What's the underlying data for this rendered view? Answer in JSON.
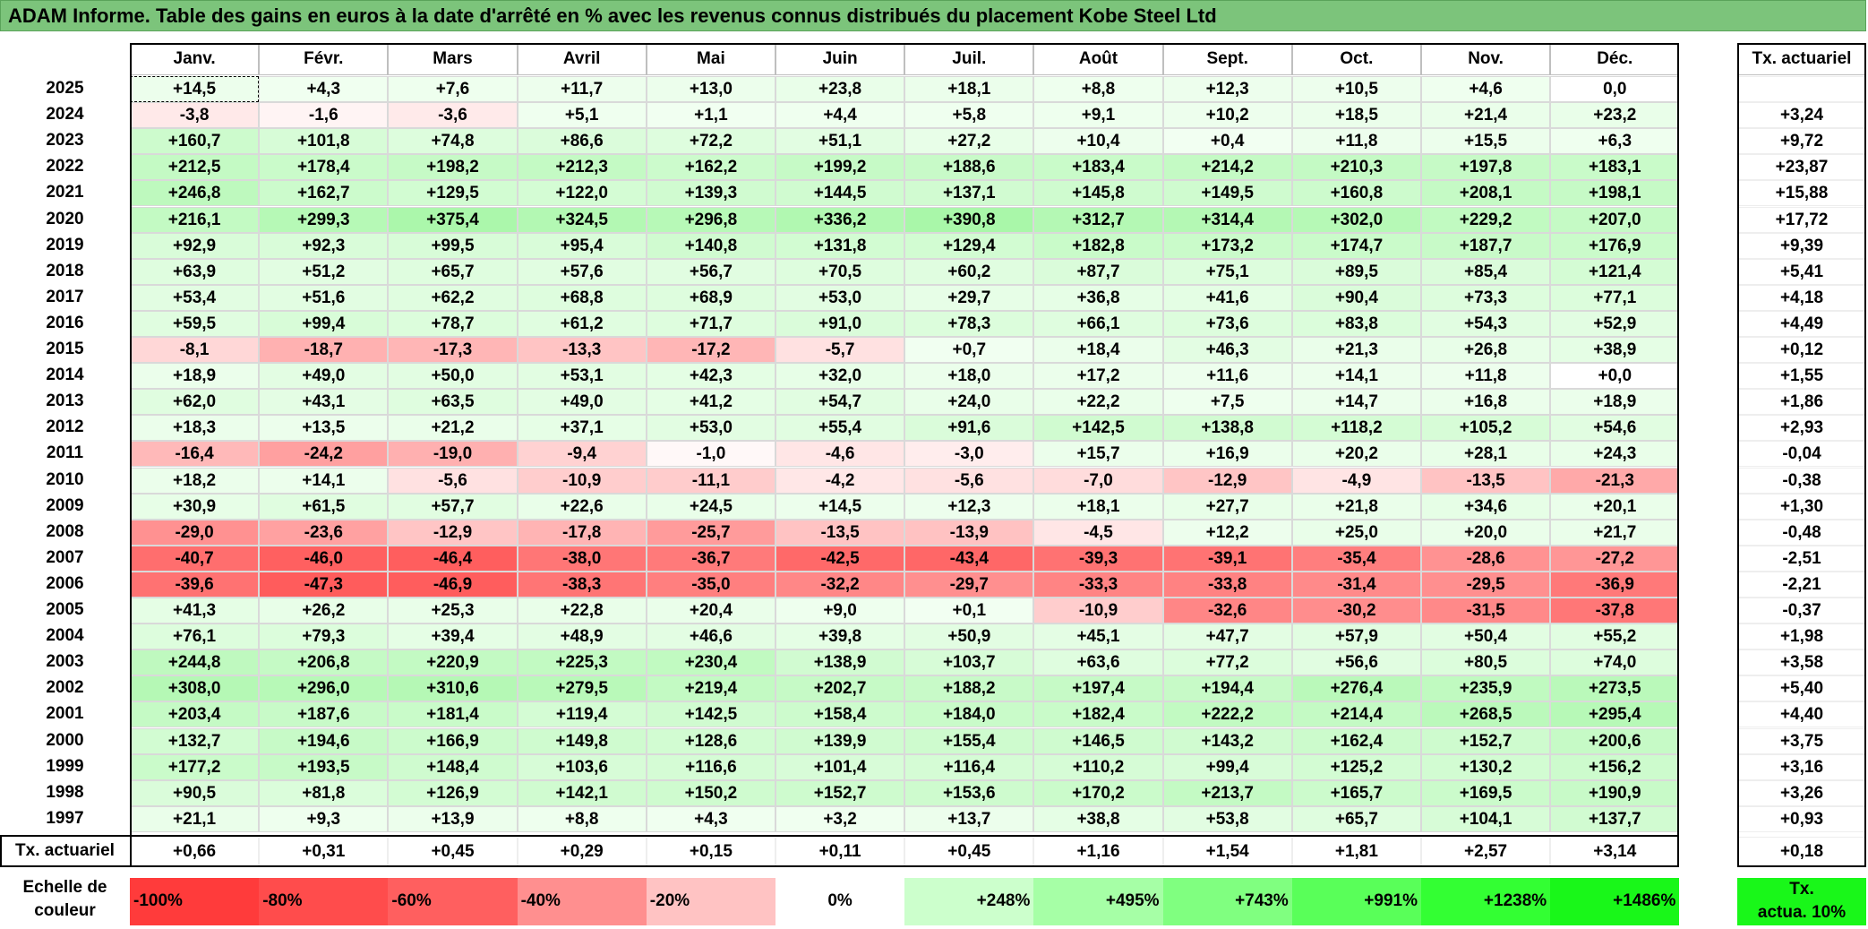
{
  "title": "ADAM Informe. Table des gains en euros à la date d'arrêté en % avec les revenus connus distribués du placement Kobe Steel Ltd",
  "chart_data": {
    "type": "heatmap",
    "title": "ADAM Informe. Table des gains en euros à la date d'arrêté en % avec les revenus connus distribués du placement Kobe Steel Ltd",
    "columns": [
      "Janv.",
      "Févr.",
      "Mars",
      "Avril",
      "Mai",
      "Juin",
      "Juil.",
      "Août",
      "Sept.",
      "Oct.",
      "Nov.",
      "Déc."
    ],
    "rate_header": "Tx. actuariel",
    "rows": [
      {
        "year": "2025",
        "values": [
          "+14,5",
          "+4,3",
          "+7,6",
          "+11,7",
          "+13,0",
          "+23,8",
          "+18,1",
          "+8,8",
          "+12,3",
          "+10,5",
          "+4,6",
          "0,0"
        ],
        "rate": ""
      },
      {
        "year": "2024",
        "values": [
          "-3,8",
          "-1,6",
          "-3,6",
          "+5,1",
          "+1,1",
          "+4,4",
          "+5,8",
          "+9,1",
          "+10,2",
          "+18,5",
          "+21,4",
          "+23,2"
        ],
        "rate": "+3,24"
      },
      {
        "year": "2023",
        "values": [
          "+160,7",
          "+101,8",
          "+74,8",
          "+86,6",
          "+72,2",
          "+51,1",
          "+27,2",
          "+10,4",
          "+0,4",
          "+11,8",
          "+15,5",
          "+6,3"
        ],
        "rate": "+9,72"
      },
      {
        "year": "2022",
        "values": [
          "+212,5",
          "+178,4",
          "+198,2",
          "+212,3",
          "+162,2",
          "+199,2",
          "+188,6",
          "+183,4",
          "+214,2",
          "+210,3",
          "+197,8",
          "+183,1"
        ],
        "rate": "+23,87"
      },
      {
        "year": "2021",
        "values": [
          "+246,8",
          "+162,7",
          "+129,5",
          "+122,0",
          "+139,3",
          "+144,5",
          "+137,1",
          "+145,8",
          "+149,5",
          "+160,8",
          "+208,1",
          "+198,1"
        ],
        "rate": "+15,88"
      },
      {
        "year": "2020",
        "values": [
          "+216,1",
          "+299,3",
          "+375,4",
          "+324,5",
          "+296,8",
          "+336,2",
          "+390,8",
          "+312,7",
          "+314,4",
          "+302,0",
          "+229,2",
          "+207,0"
        ],
        "rate": "+17,72"
      },
      {
        "year": "2019",
        "values": [
          "+92,9",
          "+92,3",
          "+99,5",
          "+95,4",
          "+140,8",
          "+131,8",
          "+129,4",
          "+182,8",
          "+173,2",
          "+174,7",
          "+187,7",
          "+176,9"
        ],
        "rate": "+9,39"
      },
      {
        "year": "2018",
        "values": [
          "+63,9",
          "+51,2",
          "+65,7",
          "+57,6",
          "+56,7",
          "+70,5",
          "+60,2",
          "+87,7",
          "+75,1",
          "+89,5",
          "+85,4",
          "+121,4"
        ],
        "rate": "+5,41"
      },
      {
        "year": "2017",
        "values": [
          "+53,4",
          "+51,6",
          "+62,2",
          "+68,8",
          "+68,9",
          "+53,0",
          "+29,7",
          "+36,8",
          "+41,6",
          "+90,4",
          "+73,3",
          "+77,1"
        ],
        "rate": "+4,18"
      },
      {
        "year": "2016",
        "values": [
          "+59,5",
          "+99,4",
          "+78,7",
          "+61,2",
          "+71,7",
          "+91,0",
          "+78,3",
          "+66,1",
          "+73,6",
          "+83,8",
          "+54,3",
          "+52,9"
        ],
        "rate": "+4,49"
      },
      {
        "year": "2015",
        "values": [
          "-8,1",
          "-18,7",
          "-17,3",
          "-13,3",
          "-17,2",
          "-5,7",
          "+0,7",
          "+18,4",
          "+46,3",
          "+21,3",
          "+26,8",
          "+38,9"
        ],
        "rate": "+0,12"
      },
      {
        "year": "2014",
        "values": [
          "+18,9",
          "+49,0",
          "+50,0",
          "+53,1",
          "+42,3",
          "+32,0",
          "+18,0",
          "+17,2",
          "+11,6",
          "+14,1",
          "+11,8",
          "+0,0"
        ],
        "rate": "+1,55"
      },
      {
        "year": "2013",
        "values": [
          "+62,0",
          "+43,1",
          "+63,5",
          "+49,0",
          "+41,2",
          "+54,7",
          "+24,0",
          "+22,2",
          "+7,5",
          "+14,7",
          "+16,8",
          "+18,9"
        ],
        "rate": "+1,86"
      },
      {
        "year": "2012",
        "values": [
          "+18,3",
          "+13,5",
          "+21,2",
          "+37,1",
          "+53,0",
          "+55,4",
          "+91,6",
          "+142,5",
          "+138,8",
          "+118,2",
          "+105,2",
          "+54,6"
        ],
        "rate": "+2,93"
      },
      {
        "year": "2011",
        "values": [
          "-16,4",
          "-24,2",
          "-19,0",
          "-9,4",
          "-1,0",
          "-4,6",
          "-3,0",
          "+15,7",
          "+16,9",
          "+20,2",
          "+28,1",
          "+24,3"
        ],
        "rate": "-0,04"
      },
      {
        "year": "2010",
        "values": [
          "+18,2",
          "+14,1",
          "-5,6",
          "-10,9",
          "-11,1",
          "-4,2",
          "-5,6",
          "-7,0",
          "-12,9",
          "-4,9",
          "-13,5",
          "-21,3"
        ],
        "rate": "-0,38"
      },
      {
        "year": "2009",
        "values": [
          "+30,9",
          "+61,5",
          "+57,7",
          "+22,6",
          "+24,5",
          "+14,5",
          "+12,3",
          "+18,1",
          "+27,7",
          "+21,8",
          "+34,6",
          "+20,1"
        ],
        "rate": "+1,30"
      },
      {
        "year": "2008",
        "values": [
          "-29,0",
          "-23,6",
          "-12,9",
          "-17,8",
          "-25,7",
          "-13,5",
          "-13,9",
          "-4,5",
          "+12,2",
          "+25,0",
          "+20,0",
          "+21,7"
        ],
        "rate": "-0,48"
      },
      {
        "year": "2007",
        "values": [
          "-40,7",
          "-46,0",
          "-46,4",
          "-38,0",
          "-36,7",
          "-42,5",
          "-43,4",
          "-39,3",
          "-39,1",
          "-35,4",
          "-28,6",
          "-27,2"
        ],
        "rate": "-2,51"
      },
      {
        "year": "2006",
        "values": [
          "-39,6",
          "-47,3",
          "-46,9",
          "-38,3",
          "-35,0",
          "-32,2",
          "-29,7",
          "-33,3",
          "-33,8",
          "-31,4",
          "-29,5",
          "-36,9"
        ],
        "rate": "-2,21"
      },
      {
        "year": "2005",
        "values": [
          "+41,3",
          "+26,2",
          "+25,3",
          "+22,8",
          "+20,4",
          "+9,0",
          "+0,1",
          "-10,9",
          "-32,6",
          "-30,2",
          "-31,5",
          "-37,8"
        ],
        "rate": "-0,37"
      },
      {
        "year": "2004",
        "values": [
          "+76,1",
          "+79,3",
          "+39,4",
          "+48,9",
          "+46,6",
          "+39,8",
          "+50,9",
          "+45,1",
          "+47,7",
          "+57,9",
          "+50,4",
          "+55,2"
        ],
        "rate": "+1,98"
      },
      {
        "year": "2003",
        "values": [
          "+244,8",
          "+206,8",
          "+220,9",
          "+225,3",
          "+230,4",
          "+138,9",
          "+103,7",
          "+63,6",
          "+77,2",
          "+56,6",
          "+80,5",
          "+74,0"
        ],
        "rate": "+3,58"
      },
      {
        "year": "2002",
        "values": [
          "+308,0",
          "+296,0",
          "+310,6",
          "+279,5",
          "+219,4",
          "+202,7",
          "+188,2",
          "+197,4",
          "+194,4",
          "+276,4",
          "+235,9",
          "+273,5"
        ],
        "rate": "+5,40"
      },
      {
        "year": "2001",
        "values": [
          "+203,4",
          "+187,6",
          "+181,4",
          "+119,4",
          "+142,5",
          "+158,4",
          "+184,0",
          "+182,4",
          "+222,2",
          "+214,4",
          "+268,5",
          "+295,4"
        ],
        "rate": "+4,40"
      },
      {
        "year": "2000",
        "values": [
          "+132,7",
          "+194,6",
          "+166,9",
          "+149,8",
          "+128,6",
          "+139,9",
          "+155,4",
          "+146,5",
          "+143,2",
          "+162,4",
          "+152,7",
          "+200,6"
        ],
        "rate": "+3,75"
      },
      {
        "year": "1999",
        "values": [
          "+177,2",
          "+193,5",
          "+148,4",
          "+103,6",
          "+116,6",
          "+101,4",
          "+116,4",
          "+110,2",
          "+99,4",
          "+125,2",
          "+130,2",
          "+156,2"
        ],
        "rate": "+3,16"
      },
      {
        "year": "1998",
        "values": [
          "+90,5",
          "+81,8",
          "+126,9",
          "+142,1",
          "+150,2",
          "+152,7",
          "+153,6",
          "+170,2",
          "+213,7",
          "+165,7",
          "+169,5",
          "+190,9"
        ],
        "rate": "+3,26"
      },
      {
        "year": "1997",
        "values": [
          "+21,1",
          "+9,3",
          "+13,9",
          "+8,8",
          "+4,3",
          "+3,2",
          "+13,7",
          "+38,8",
          "+53,8",
          "+65,7",
          "+104,1",
          "+137,7"
        ],
        "rate": "+0,93"
      }
    ],
    "footer": {
      "label": "Tx. actuariel",
      "values": [
        "+0,66",
        "+0,31",
        "+0,45",
        "+0,29",
        "+0,15",
        "+0,11",
        "+0,45",
        "+1,16",
        "+1,54",
        "+1,81",
        "+2,57",
        "+3,14"
      ],
      "rate": "+0,18"
    },
    "legend": {
      "label_line1": "Echelle de",
      "label_line2": "couleur",
      "items": [
        {
          "text": "-100%",
          "color": "#ff3b3b",
          "align": "left"
        },
        {
          "text": "-80%",
          "color": "#ff4c4c",
          "align": "left"
        },
        {
          "text": "-60%",
          "color": "#ff5f5f",
          "align": "left"
        },
        {
          "text": "-40%",
          "color": "#ff8f8f",
          "align": "left"
        },
        {
          "text": "-20%",
          "color": "#ffc3c3",
          "align": "left"
        },
        {
          "text": "0%",
          "color": "#ffffff",
          "align": "center"
        },
        {
          "text": "+248%",
          "color": "#ccffcc",
          "align": "right"
        },
        {
          "text": "+495%",
          "color": "#a6ffa6",
          "align": "right"
        },
        {
          "text": "+743%",
          "color": "#80ff80",
          "align": "right"
        },
        {
          "text": "+991%",
          "color": "#59ff59",
          "align": "right"
        },
        {
          "text": "+1238%",
          "color": "#33ff33",
          "align": "right"
        },
        {
          "text": "+1486%",
          "color": "#19f719",
          "align": "right"
        }
      ],
      "rate_line1": "Tx.",
      "rate_line2": "actua. 10%",
      "rate_color": "#19f719"
    },
    "colors": {
      "title_bg": "#7cc47b",
      "negative_max": "#ff5a5a",
      "positive_max": "#a8f7a8",
      "neutral": "#ffffff"
    }
  }
}
